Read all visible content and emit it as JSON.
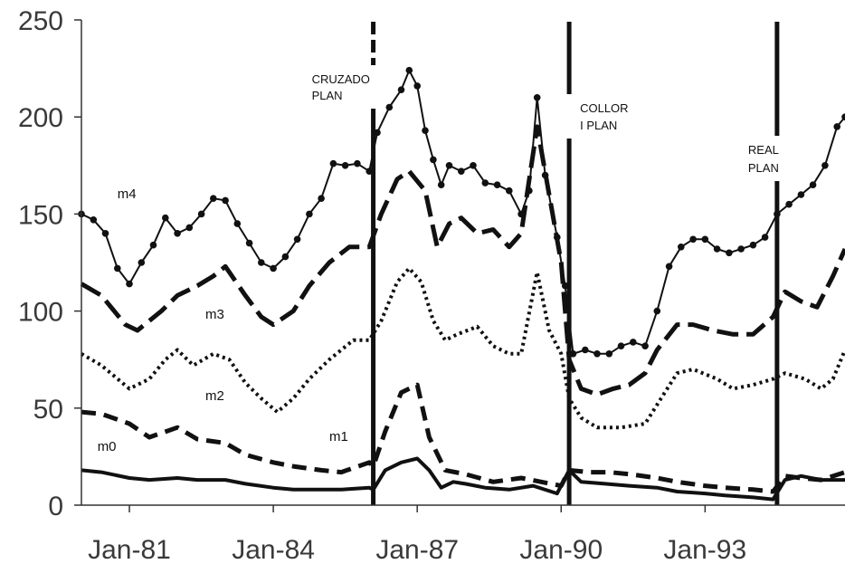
{
  "chart_data": {
    "type": "line",
    "title": "",
    "xlabel": "",
    "ylabel": "",
    "xlim": [
      "1980-01",
      "1995-12"
    ],
    "ylim": [
      0,
      250
    ],
    "yticks": [
      0,
      50,
      100,
      150,
      200,
      250
    ],
    "xticks": [
      {
        "date": "1981-01",
        "label": "Jan-81"
      },
      {
        "date": "1984-01",
        "label": "Jan-84"
      },
      {
        "date": "1987-01",
        "label": "Jan-87"
      },
      {
        "date": "1990-01",
        "label": "Jan-90"
      },
      {
        "date": "1993-01",
        "label": "Jan-93"
      }
    ],
    "grid": false,
    "legend": "none",
    "events": [
      {
        "date": "1986-02",
        "label": [
          "CRUZADO",
          "PLAN"
        ]
      },
      {
        "date": "1990-03",
        "label": [
          "COLLOR",
          "I PLAN"
        ]
      },
      {
        "date": "1994-07",
        "label": [
          "REAL",
          "PLAN"
        ]
      }
    ],
    "series": [
      {
        "name": "m4",
        "style": "solid-markers",
        "points": [
          [
            "1980-01",
            150
          ],
          [
            "1980-04",
            147
          ],
          [
            "1980-07",
            140
          ],
          [
            "1980-10",
            122
          ],
          [
            "1981-01",
            114
          ],
          [
            "1981-04",
            125
          ],
          [
            "1981-07",
            134
          ],
          [
            "1981-10",
            148
          ],
          [
            "1982-01",
            140
          ],
          [
            "1982-04",
            143
          ],
          [
            "1982-07",
            150
          ],
          [
            "1982-10",
            158
          ],
          [
            "1983-01",
            157
          ],
          [
            "1983-04",
            145
          ],
          [
            "1983-07",
            135
          ],
          [
            "1983-10",
            125
          ],
          [
            "1984-01",
            122
          ],
          [
            "1984-04",
            128
          ],
          [
            "1984-07",
            137
          ],
          [
            "1984-10",
            150
          ],
          [
            "1985-01",
            158
          ],
          [
            "1985-04",
            176
          ],
          [
            "1985-07",
            175
          ],
          [
            "1985-10",
            176
          ],
          [
            "1986-01",
            172
          ],
          [
            "1986-03",
            192
          ],
          [
            "1986-06",
            205
          ],
          [
            "1986-09",
            214
          ],
          [
            "1986-11",
            224
          ],
          [
            "1987-01",
            216
          ],
          [
            "1987-03",
            193
          ],
          [
            "1987-05",
            178
          ],
          [
            "1987-07",
            165
          ],
          [
            "1987-09",
            175
          ],
          [
            "1987-12",
            172
          ],
          [
            "1988-03",
            175
          ],
          [
            "1988-06",
            166
          ],
          [
            "1988-09",
            165
          ],
          [
            "1988-12",
            162
          ],
          [
            "1989-03",
            150
          ],
          [
            "1989-05",
            162
          ],
          [
            "1989-07",
            210
          ],
          [
            "1989-09",
            170
          ],
          [
            "1989-12",
            138
          ],
          [
            "1990-02",
            113
          ],
          [
            "1990-04",
            78
          ],
          [
            "1990-07",
            80
          ],
          [
            "1990-10",
            78
          ],
          [
            "1991-01",
            78
          ],
          [
            "1991-04",
            82
          ],
          [
            "1991-07",
            84
          ],
          [
            "1991-10",
            82
          ],
          [
            "1992-01",
            100
          ],
          [
            "1992-04",
            123
          ],
          [
            "1992-07",
            133
          ],
          [
            "1992-10",
            137
          ],
          [
            "1993-01",
            137
          ],
          [
            "1993-04",
            132
          ],
          [
            "1993-07",
            130
          ],
          [
            "1993-10",
            132
          ],
          [
            "1994-01",
            134
          ],
          [
            "1994-04",
            138
          ],
          [
            "1994-07",
            150
          ],
          [
            "1994-10",
            155
          ],
          [
            "1995-01",
            160
          ],
          [
            "1995-04",
            165
          ],
          [
            "1995-07",
            175
          ],
          [
            "1995-10",
            195
          ],
          [
            "1995-12",
            200
          ]
        ]
      },
      {
        "name": "m3",
        "style": "long-dash",
        "points": [
          [
            "1980-01",
            114
          ],
          [
            "1980-06",
            108
          ],
          [
            "1980-12",
            93
          ],
          [
            "1981-03",
            90
          ],
          [
            "1981-09",
            100
          ],
          [
            "1982-01",
            108
          ],
          [
            "1982-06",
            113
          ],
          [
            "1982-10",
            118
          ],
          [
            "1983-01",
            123
          ],
          [
            "1983-06",
            108
          ],
          [
            "1983-10",
            97
          ],
          [
            "1984-01",
            93
          ],
          [
            "1984-06",
            100
          ],
          [
            "1984-10",
            113
          ],
          [
            "1985-03",
            125
          ],
          [
            "1985-08",
            133
          ],
          [
            "1986-01",
            133
          ],
          [
            "1986-04",
            150
          ],
          [
            "1986-08",
            168
          ],
          [
            "1986-11",
            172
          ],
          [
            "1987-03",
            162
          ],
          [
            "1987-06",
            133
          ],
          [
            "1987-09",
            145
          ],
          [
            "1987-12",
            148
          ],
          [
            "1988-04",
            140
          ],
          [
            "1988-08",
            142
          ],
          [
            "1988-12",
            133
          ],
          [
            "1989-03",
            140
          ],
          [
            "1989-07",
            195
          ],
          [
            "1989-10",
            160
          ],
          [
            "1990-01",
            125
          ],
          [
            "1990-03",
            75
          ],
          [
            "1990-06",
            60
          ],
          [
            "1990-10",
            57
          ],
          [
            "1991-02",
            60
          ],
          [
            "1991-06",
            62
          ],
          [
            "1991-10",
            68
          ],
          [
            "1992-01",
            80
          ],
          [
            "1992-06",
            93
          ],
          [
            "1992-10",
            93
          ],
          [
            "1993-03",
            90
          ],
          [
            "1993-08",
            88
          ],
          [
            "1994-01",
            88
          ],
          [
            "1994-06",
            97
          ],
          [
            "1994-09",
            110
          ],
          [
            "1995-01",
            105
          ],
          [
            "1995-05",
            102
          ],
          [
            "1995-09",
            118
          ],
          [
            "1995-12",
            132
          ]
        ]
      },
      {
        "name": "m2",
        "style": "dotted",
        "points": [
          [
            "1980-01",
            78
          ],
          [
            "1980-06",
            72
          ],
          [
            "1981-01",
            60
          ],
          [
            "1981-06",
            65
          ],
          [
            "1981-10",
            75
          ],
          [
            "1982-01",
            80
          ],
          [
            "1982-05",
            72
          ],
          [
            "1982-10",
            78
          ],
          [
            "1983-02",
            75
          ],
          [
            "1983-06",
            63
          ],
          [
            "1983-10",
            55
          ],
          [
            "1984-02",
            48
          ],
          [
            "1984-06",
            55
          ],
          [
            "1984-10",
            65
          ],
          [
            "1985-03",
            75
          ],
          [
            "1985-09",
            85
          ],
          [
            "1986-01",
            85
          ],
          [
            "1986-04",
            95
          ],
          [
            "1986-08",
            115
          ],
          [
            "1986-11",
            122
          ],
          [
            "1987-02",
            115
          ],
          [
            "1987-05",
            95
          ],
          [
            "1987-08",
            85
          ],
          [
            "1987-11",
            88
          ],
          [
            "1988-04",
            92
          ],
          [
            "1988-08",
            82
          ],
          [
            "1988-12",
            78
          ],
          [
            "1989-03",
            78
          ],
          [
            "1989-07",
            120
          ],
          [
            "1989-10",
            90
          ],
          [
            "1990-01",
            78
          ],
          [
            "1990-03",
            55
          ],
          [
            "1990-06",
            45
          ],
          [
            "1990-10",
            40
          ],
          [
            "1991-04",
            40
          ],
          [
            "1991-10",
            42
          ],
          [
            "1992-02",
            55
          ],
          [
            "1992-06",
            68
          ],
          [
            "1992-10",
            70
          ],
          [
            "1993-04",
            65
          ],
          [
            "1993-08",
            60
          ],
          [
            "1994-01",
            62
          ],
          [
            "1994-06",
            65
          ],
          [
            "1994-09",
            68
          ],
          [
            "1995-02",
            65
          ],
          [
            "1995-06",
            60
          ],
          [
            "1995-09",
            65
          ],
          [
            "1995-12",
            80
          ]
        ]
      },
      {
        "name": "m1",
        "style": "short-dash",
        "points": [
          [
            "1980-01",
            48
          ],
          [
            "1980-06",
            47
          ],
          [
            "1981-01",
            42
          ],
          [
            "1981-06",
            35
          ],
          [
            "1982-01",
            40
          ],
          [
            "1982-06",
            34
          ],
          [
            "1983-01",
            32
          ],
          [
            "1983-06",
            26
          ],
          [
            "1984-01",
            22
          ],
          [
            "1984-06",
            20
          ],
          [
            "1985-01",
            18
          ],
          [
            "1985-06",
            17
          ],
          [
            "1986-01",
            22
          ],
          [
            "1986-02",
            20
          ],
          [
            "1986-05",
            38
          ],
          [
            "1986-09",
            58
          ],
          [
            "1987-01",
            62
          ],
          [
            "1987-04",
            35
          ],
          [
            "1987-08",
            18
          ],
          [
            "1988-01",
            16
          ],
          [
            "1988-08",
            12
          ],
          [
            "1989-03",
            14
          ],
          [
            "1989-08",
            12
          ],
          [
            "1990-01",
            10
          ],
          [
            "1990-03",
            18
          ],
          [
            "1990-08",
            17
          ],
          [
            "1991-01",
            17
          ],
          [
            "1991-06",
            16
          ],
          [
            "1992-01",
            14
          ],
          [
            "1992-06",
            12
          ],
          [
            "1993-01",
            10
          ],
          [
            "1993-06",
            9
          ],
          [
            "1994-01",
            8
          ],
          [
            "1994-06",
            7
          ],
          [
            "1994-09",
            15
          ],
          [
            "1995-01",
            14
          ],
          [
            "1995-06",
            13
          ],
          [
            "1995-12",
            17
          ]
        ]
      },
      {
        "name": "m0",
        "style": "solid-thick",
        "points": [
          [
            "1980-01",
            18
          ],
          [
            "1980-06",
            17
          ],
          [
            "1981-01",
            14
          ],
          [
            "1981-06",
            13
          ],
          [
            "1982-01",
            14
          ],
          [
            "1982-06",
            13
          ],
          [
            "1983-01",
            13
          ],
          [
            "1983-06",
            11
          ],
          [
            "1984-01",
            9
          ],
          [
            "1984-06",
            8
          ],
          [
            "1985-01",
            8
          ],
          [
            "1985-06",
            8
          ],
          [
            "1986-01",
            9
          ],
          [
            "1986-02",
            8
          ],
          [
            "1986-05",
            18
          ],
          [
            "1986-09",
            22
          ],
          [
            "1987-01",
            24
          ],
          [
            "1987-04",
            18
          ],
          [
            "1987-07",
            9
          ],
          [
            "1987-10",
            12
          ],
          [
            "1988-01",
            11
          ],
          [
            "1988-06",
            9
          ],
          [
            "1988-12",
            8
          ],
          [
            "1989-06",
            10
          ],
          [
            "1989-12",
            6
          ],
          [
            "1990-03",
            18
          ],
          [
            "1990-06",
            12
          ],
          [
            "1990-12",
            11
          ],
          [
            "1991-06",
            10
          ],
          [
            "1992-01",
            9
          ],
          [
            "1992-06",
            7
          ],
          [
            "1993-01",
            6
          ],
          [
            "1993-06",
            5
          ],
          [
            "1994-01",
            4
          ],
          [
            "1994-06",
            3
          ],
          [
            "1994-09",
            13
          ],
          [
            "1995-01",
            15
          ],
          [
            "1995-06",
            13
          ],
          [
            "1995-12",
            13
          ]
        ]
      }
    ]
  }
}
